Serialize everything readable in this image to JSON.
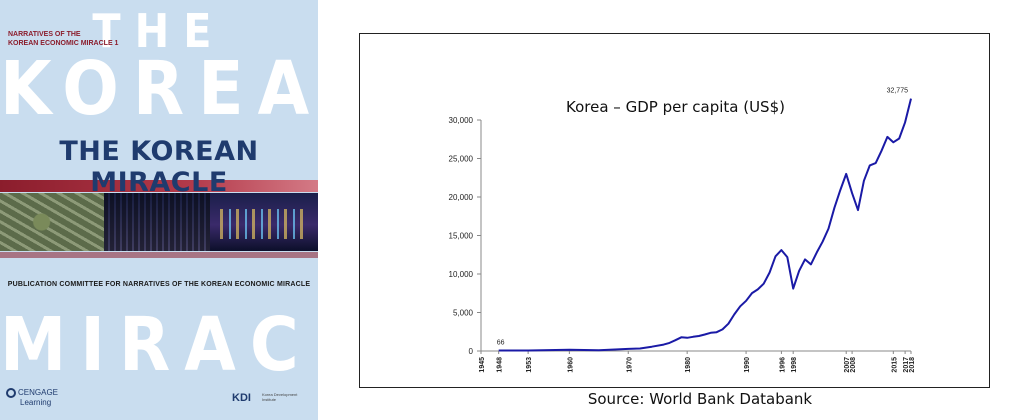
{
  "cover": {
    "the": "THE",
    "korean": "KOREAN",
    "series_line1": "NARRATIVES OF THE",
    "series_line2": "KOREAN ECONOMIC MIRACLE 1",
    "subtitle": "THE KOREAN MIRACLE",
    "committee": "PUBLICATION COMMITTEE FOR NARRATIVES OF THE KOREAN ECONOMIC MIRACLE",
    "miracle": "MIRACLE",
    "cengage_line1": "CENGAGE",
    "cengage_line2": "Learning",
    "kdi": "KDI",
    "kdi_sub": "Korea Development Institute"
  },
  "source": "Source: World Bank Databank",
  "chart_data": {
    "type": "line",
    "title": "Korea – GDP per capita (US$)",
    "xlabel": "",
    "ylabel": "",
    "xlim": [
      1945,
      2018
    ],
    "ylim": [
      0,
      30000
    ],
    "y_ticks": [
      0,
      5000,
      10000,
      15000,
      20000,
      25000,
      30000
    ],
    "y_tick_labels": [
      "0",
      "5,000",
      "10,000",
      "15,000",
      "20,000",
      "25,000",
      "30,000"
    ],
    "x_ticks": [
      1945,
      1948,
      1953,
      1960,
      1970,
      1980,
      1990,
      1996,
      1998,
      2007,
      2008,
      2015,
      2017,
      2018
    ],
    "grid": false,
    "line_color": "#1a1aa6",
    "series": [
      {
        "points": [
          [
            1948,
            66
          ],
          [
            1953,
            67
          ],
          [
            1960,
            158
          ],
          [
            1965,
            108
          ],
          [
            1970,
            279
          ],
          [
            1972,
            324
          ],
          [
            1974,
            563
          ],
          [
            1976,
            834
          ],
          [
            1977,
            1055
          ],
          [
            1978,
            1406
          ],
          [
            1979,
            1784
          ],
          [
            1980,
            1711
          ],
          [
            1981,
            1850
          ],
          [
            1982,
            1950
          ],
          [
            1983,
            2141
          ],
          [
            1984,
            2363
          ],
          [
            1985,
            2440
          ],
          [
            1986,
            2800
          ],
          [
            1987,
            3550
          ],
          [
            1988,
            4750
          ],
          [
            1989,
            5800
          ],
          [
            1990,
            6520
          ],
          [
            1991,
            7520
          ],
          [
            1992,
            8000
          ],
          [
            1993,
            8740
          ],
          [
            1994,
            10200
          ],
          [
            1995,
            12300
          ],
          [
            1996,
            13100
          ],
          [
            1997,
            12200
          ],
          [
            1998,
            8100
          ],
          [
            1999,
            10400
          ],
          [
            2000,
            11900
          ],
          [
            2001,
            11250
          ],
          [
            2002,
            12800
          ],
          [
            2003,
            14200
          ],
          [
            2004,
            15900
          ],
          [
            2005,
            18600
          ],
          [
            2006,
            20900
          ],
          [
            2007,
            23000
          ],
          [
            2008,
            20500
          ],
          [
            2009,
            18300
          ],
          [
            2010,
            22100
          ],
          [
            2011,
            24100
          ],
          [
            2012,
            24400
          ],
          [
            2013,
            26000
          ],
          [
            2014,
            27800
          ],
          [
            2015,
            27100
          ],
          [
            2016,
            27600
          ],
          [
            2017,
            29700
          ],
          [
            2018,
            32775
          ]
        ]
      }
    ],
    "annotations": [
      {
        "text": "66",
        "x": 1948,
        "y": 66
      },
      {
        "text": "32,775",
        "x": 2018,
        "y": 32775
      }
    ]
  }
}
